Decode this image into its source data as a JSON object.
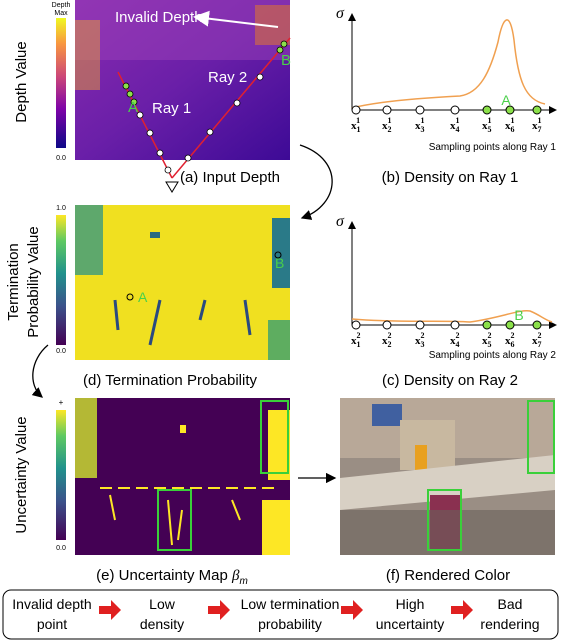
{
  "a": {
    "caption": "(a) Input Depth",
    "colorbar_top": [
      "Depth",
      "Max"
    ],
    "colorbar_bottom": "0.0",
    "axis_label": "Depth  Value",
    "invalid": "Invalid Depth",
    "ray1": "Ray 1",
    "ray2": "Ray 2",
    "point_a": "A",
    "point_b": "B"
  },
  "b": {
    "caption": "(b) Density on Ray 1",
    "sigma": "σ",
    "axis_note": "Sampling points along Ray 1",
    "marker": "A",
    "points": [
      {
        "base": "x",
        "sub": "1",
        "sup": "1"
      },
      {
        "base": "x",
        "sub": "2",
        "sup": "1"
      },
      {
        "base": "x",
        "sub": "3",
        "sup": "1"
      },
      {
        "base": "x",
        "sub": "4",
        "sup": "1"
      },
      {
        "base": "x",
        "sub": "5",
        "sup": "1"
      },
      {
        "base": "x",
        "sub": "6",
        "sup": "1"
      },
      {
        "base": "x",
        "sub": "7",
        "sup": "1"
      }
    ]
  },
  "c": {
    "caption": "(c) Density on Ray 2",
    "sigma": "σ",
    "axis_note": "Sampling points along Ray 2",
    "marker": "B",
    "points": [
      {
        "base": "x",
        "sub": "1",
        "sup": "2"
      },
      {
        "base": "x",
        "sub": "2",
        "sup": "2"
      },
      {
        "base": "x",
        "sub": "3",
        "sup": "2"
      },
      {
        "base": "x",
        "sub": "4",
        "sup": "2"
      },
      {
        "base": "x",
        "sub": "5",
        "sup": "2"
      },
      {
        "base": "x",
        "sub": "6",
        "sup": "2"
      },
      {
        "base": "x",
        "sub": "7",
        "sup": "2"
      }
    ]
  },
  "d": {
    "caption": "(d) Termination Probability",
    "axis_label": [
      "Termination",
      "Probability Value"
    ],
    "colorbar_top": "1.0",
    "colorbar_bottom": "0.0",
    "point_a": "A",
    "point_b": "B"
  },
  "e": {
    "caption": "(e) Uncertainty Map",
    "symbol": "β",
    "symbol_sub": "m",
    "axis_label": "Uncertainty  Value",
    "colorbar_top": "+",
    "colorbar_bottom": "0.0"
  },
  "f": {
    "caption": "(f) Rendered Color"
  },
  "flow": [
    [
      "Invalid depth",
      "point"
    ],
    [
      "Low",
      "density"
    ],
    [
      "Low termination",
      "probability"
    ],
    [
      "High",
      "uncertainty"
    ],
    [
      "Bad",
      "rendering"
    ]
  ]
}
